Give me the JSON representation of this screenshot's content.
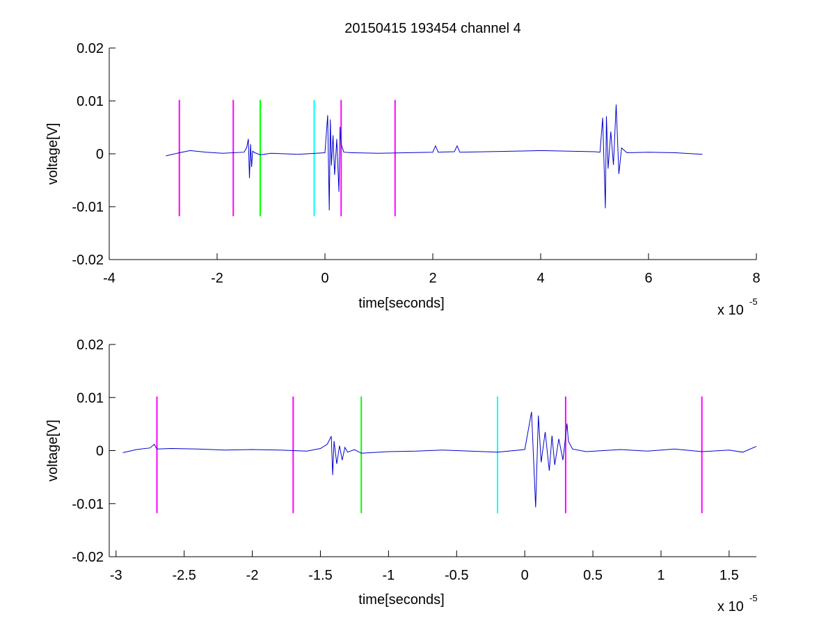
{
  "chart_data": [
    {
      "type": "line",
      "title": "20150415 193454 channel 4",
      "xlabel": "time[seconds]",
      "ylabel": "voltage[V]",
      "x_exponent_label": "x 10",
      "x_exponent_power": "-5",
      "xlim": [
        -4,
        8
      ],
      "ylim": [
        -0.02,
        0.02
      ],
      "xticks": [
        -4,
        -2,
        0,
        2,
        4,
        6,
        8
      ],
      "xtick_labels": [
        "-4",
        "-2",
        "0",
        "2",
        "4",
        "6",
        "8"
      ],
      "yticks": [
        0.02,
        0.01,
        0,
        -0.01,
        -0.02
      ],
      "ytick_labels": [
        "0.02",
        "0.01",
        "0",
        "-0.01",
        "-0.02"
      ],
      "grid": false,
      "series": [
        {
          "color": "#0000cc",
          "x": [
            -2.95,
            -2.7,
            -2.5,
            -2.2,
            -1.9,
            -1.5,
            -1.45,
            -1.42,
            -1.4,
            -1.38,
            -1.36,
            -1.34,
            -1.3,
            -1.2,
            -1.0,
            -0.5,
            0.0,
            0.05,
            0.08,
            0.1,
            0.12,
            0.15,
            0.18,
            0.22,
            0.26,
            0.28,
            0.3,
            0.35,
            0.5,
            1.0,
            1.5,
            2.0,
            2.05,
            2.1,
            2.4,
            2.45,
            2.5,
            3.0,
            4.0,
            5.0,
            5.1,
            5.15,
            5.2,
            5.22,
            5.25,
            5.3,
            5.35,
            5.4,
            5.45,
            5.5,
            5.6,
            6.0,
            6.5,
            7.0
          ],
          "y": [
            -0.0004,
            0.0002,
            0.0006,
            0.0003,
            0.0001,
            0.0003,
            0.0012,
            0.0028,
            -0.0046,
            0.0018,
            -0.0025,
            0.0005,
            0.0002,
            -0.0002,
            0.0001,
            -0.0001,
            0.0002,
            0.0073,
            -0.0107,
            0.0065,
            -0.0022,
            0.0035,
            -0.004,
            0.0028,
            -0.0072,
            0.0051,
            0.0018,
            0.0003,
            0.0002,
            0.0001,
            0.0002,
            0.0003,
            0.0015,
            0.0003,
            0.0004,
            0.0015,
            0.0003,
            0.0004,
            0.0006,
            0.0004,
            0.0003,
            0.0068,
            -0.0103,
            0.0071,
            -0.0028,
            0.0042,
            -0.0021,
            0.0093,
            -0.0038,
            0.0011,
            0.0002,
            0.0003,
            0.0002,
            -0.0001
          ]
        }
      ],
      "markers": [
        {
          "x": -2.7,
          "color": "#ff00ff"
        },
        {
          "x": -1.7,
          "color": "#ff00ff"
        },
        {
          "x": -1.2,
          "color": "#00ff00"
        },
        {
          "x": -0.2,
          "color": "#00ffff"
        },
        {
          "x": 0.3,
          "color": "#ff00ff"
        },
        {
          "x": 1.3,
          "color": "#ff00ff"
        }
      ],
      "marker_ylim": [
        -0.0118,
        0.0102
      ]
    },
    {
      "type": "line",
      "title": "",
      "xlabel": "time[seconds]",
      "ylabel": "voltage[V]",
      "x_exponent_label": "x 10",
      "x_exponent_power": "-5",
      "xlim": [
        -3.05,
        1.7
      ],
      "ylim": [
        -0.02,
        0.02
      ],
      "xticks": [
        -3,
        -2.5,
        -2,
        -1.5,
        -1,
        -0.5,
        0,
        0.5,
        1,
        1.5
      ],
      "xtick_labels": [
        "-3",
        "-2.5",
        "-2",
        "-1.5",
        "-1",
        "-0.5",
        "0",
        "0.5",
        "1",
        "1.5"
      ],
      "yticks": [
        0.02,
        0.01,
        0,
        -0.01,
        -0.02
      ],
      "ytick_labels": [
        "0.02",
        "0.01",
        "0",
        "-0.01",
        "-0.02"
      ],
      "grid": false,
      "series": [
        {
          "color": "#0000cc",
          "x": [
            -2.95,
            -2.85,
            -2.75,
            -2.72,
            -2.7,
            -2.6,
            -2.4,
            -2.2,
            -2.0,
            -1.8,
            -1.6,
            -1.5,
            -1.45,
            -1.42,
            -1.41,
            -1.4,
            -1.38,
            -1.36,
            -1.34,
            -1.32,
            -1.3,
            -1.25,
            -1.2,
            -1.0,
            -0.8,
            -0.6,
            -0.4,
            -0.2,
            0.0,
            0.05,
            0.08,
            0.1,
            0.12,
            0.15,
            0.18,
            0.2,
            0.22,
            0.25,
            0.28,
            0.31,
            0.32,
            0.35,
            0.45,
            0.7,
            0.9,
            1.1,
            1.3,
            1.5,
            1.6,
            1.7
          ],
          "y": [
            -0.0004,
            0.0002,
            0.0005,
            0.0012,
            0.0003,
            0.0004,
            0.0003,
            0.0001,
            0.0002,
            0.0001,
            -0.0001,
            0.0004,
            0.0012,
            0.0027,
            -0.0046,
            0.0018,
            -0.0025,
            0.0009,
            -0.0018,
            0.0006,
            -0.0003,
            0.0002,
            -0.0005,
            -0.0002,
            -0.0001,
            0.0001,
            -0.0001,
            -0.0003,
            0.0002,
            0.0073,
            -0.0107,
            0.0066,
            -0.0022,
            0.0035,
            -0.0038,
            0.0028,
            -0.0027,
            0.0022,
            -0.0018,
            0.0051,
            0.0018,
            0.0003,
            -0.0002,
            0.0002,
            -0.0001,
            0.0003,
            -0.0002,
            0.0001,
            -0.0003,
            0.0008
          ]
        }
      ],
      "markers": [
        {
          "x": -2.7,
          "color": "#ff00ff"
        },
        {
          "x": -1.7,
          "color": "#ff00ff"
        },
        {
          "x": -1.2,
          "color": "#00ff00"
        },
        {
          "x": -0.2,
          "color": "#00ffff"
        },
        {
          "x": 0.3,
          "color": "#ff00ff"
        },
        {
          "x": 1.3,
          "color": "#ff00ff"
        }
      ],
      "marker_ylim": [
        -0.0118,
        0.0102
      ]
    }
  ]
}
